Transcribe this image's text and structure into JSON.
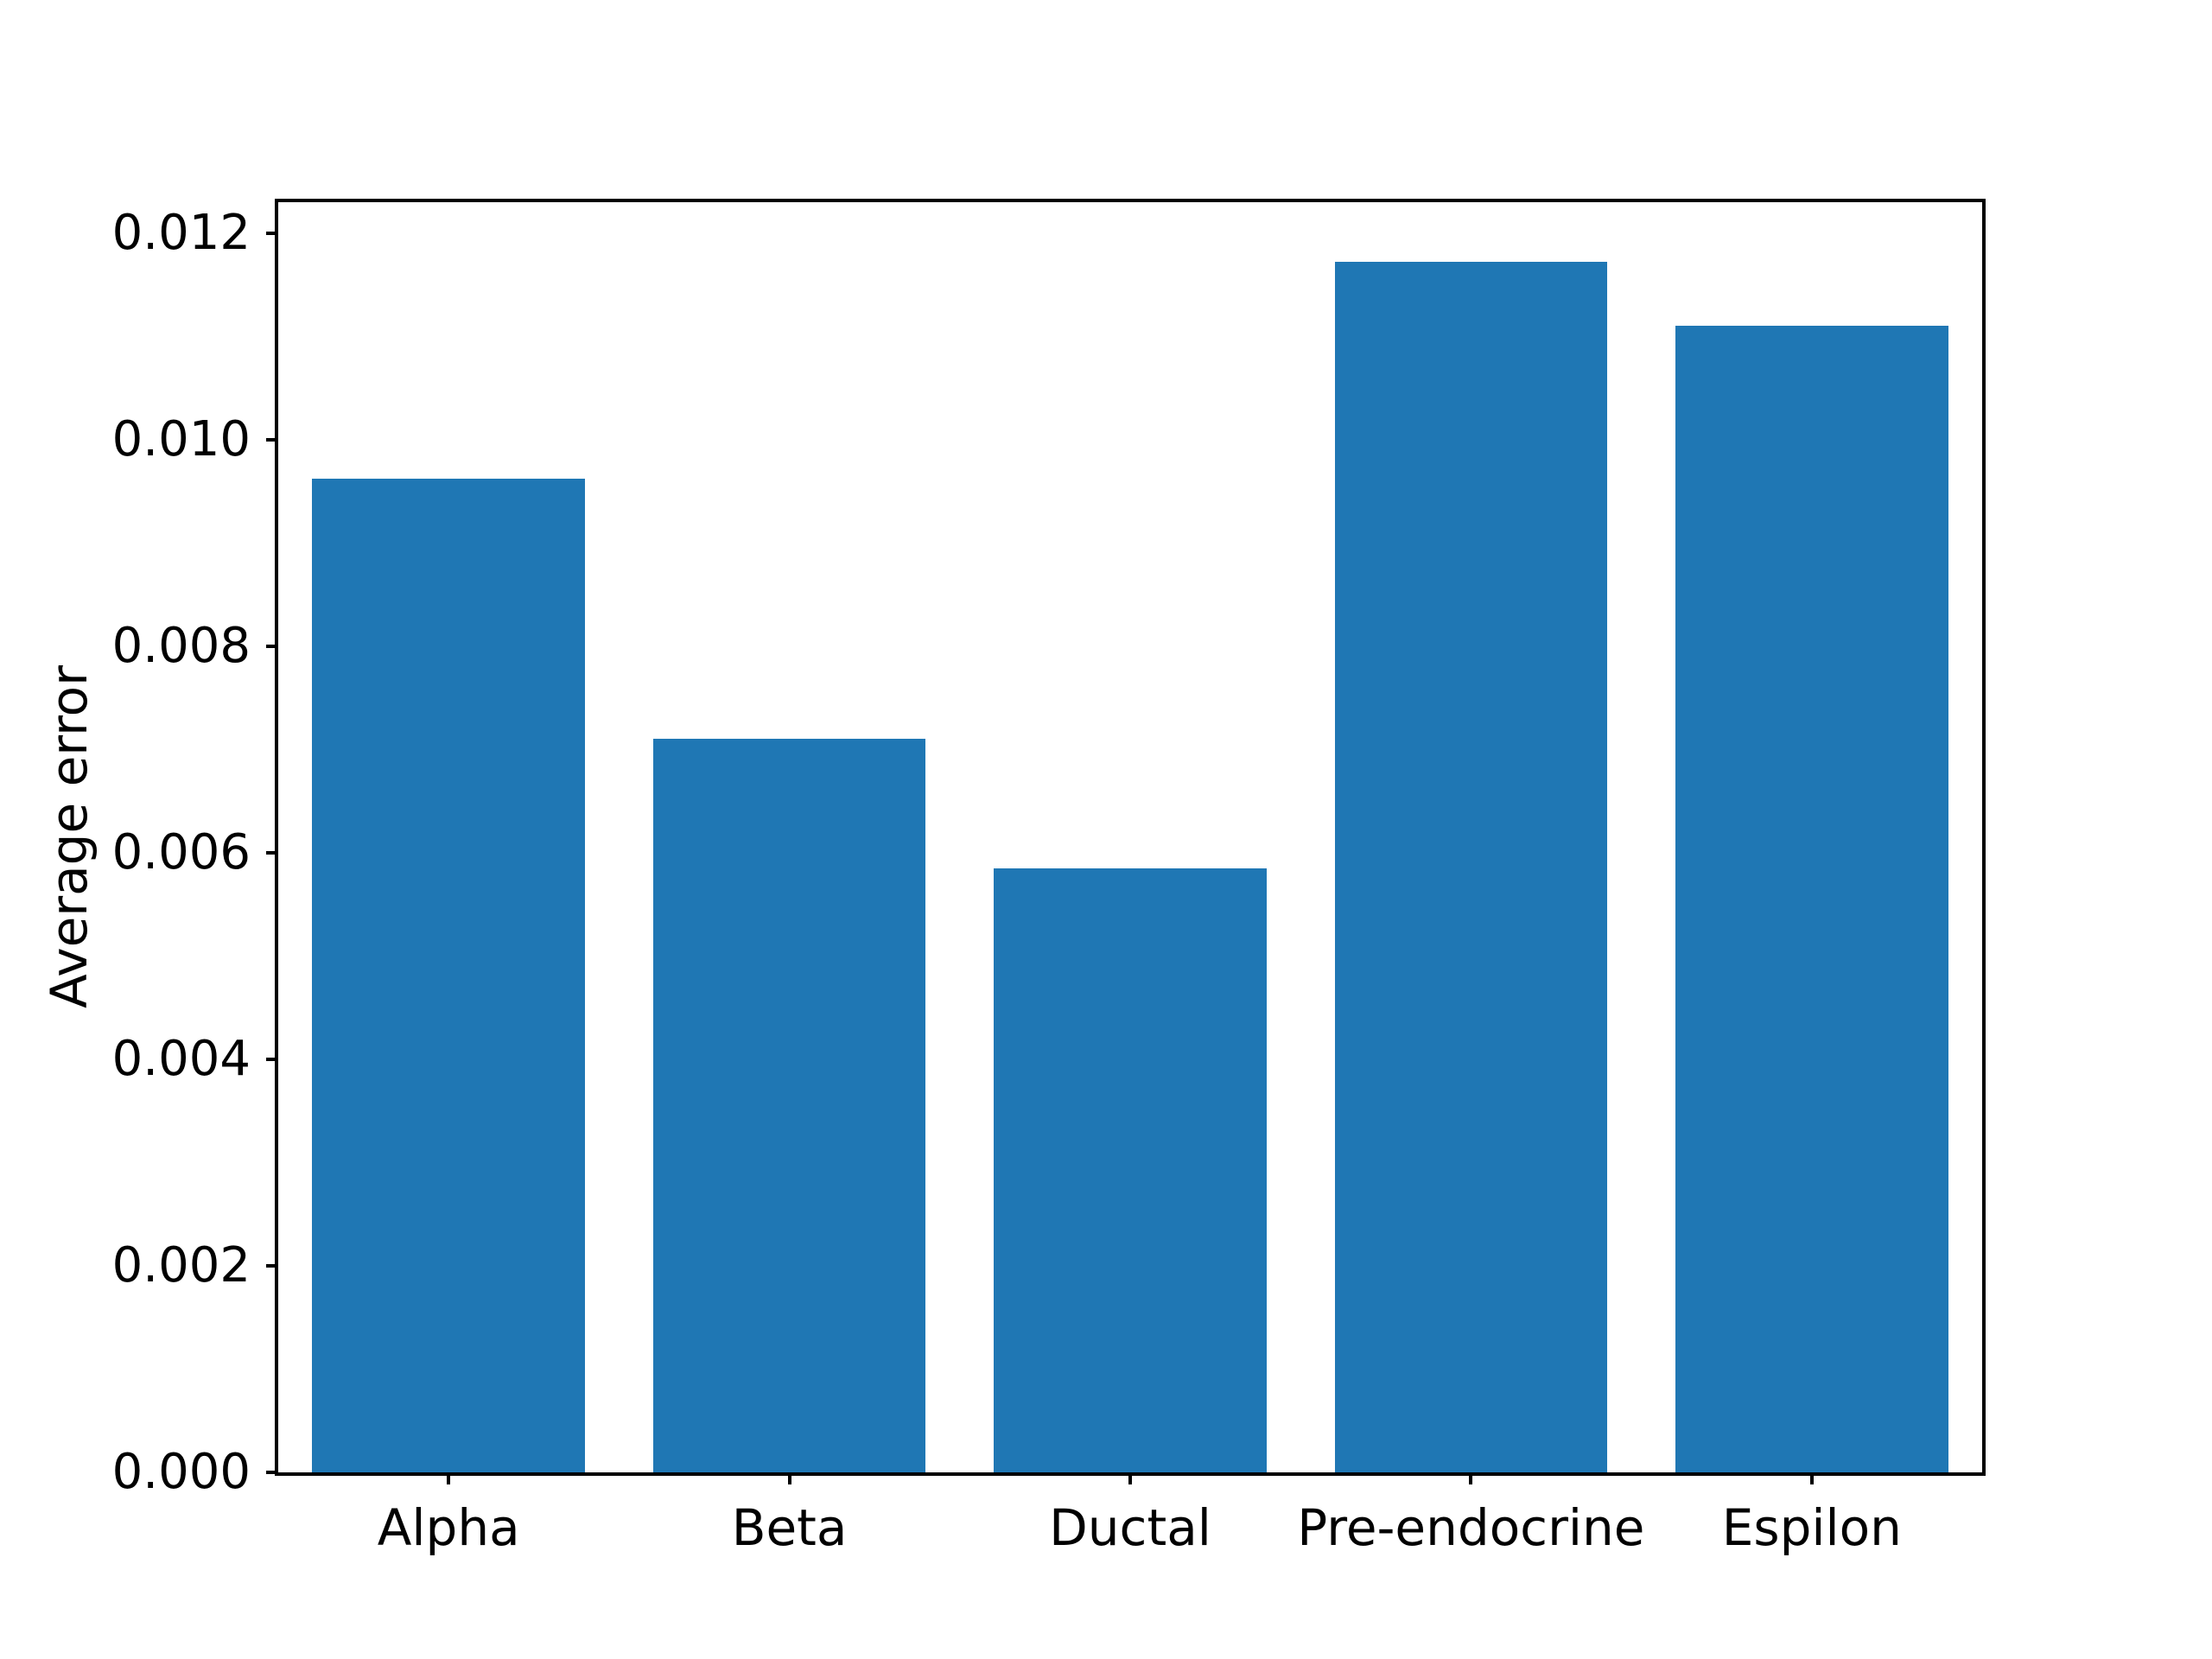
{
  "chart_data": {
    "type": "bar",
    "title": "",
    "xlabel": "",
    "ylabel": "Average error",
    "categories": [
      "Alpha",
      "Beta",
      "Ductal",
      "Pre-endocrine",
      "Espilon"
    ],
    "values": [
      0.00962,
      0.0071,
      0.00585,
      0.01172,
      0.0111
    ],
    "ylim": [
      0,
      0.0123
    ],
    "yticks": [
      0.0,
      0.002,
      0.004,
      0.006,
      0.008,
      0.01,
      0.012
    ],
    "ytick_labels": [
      "0.000",
      "0.002",
      "0.004",
      "0.006",
      "0.008",
      "0.010",
      "0.012"
    ],
    "bar_color": "#1f77b4",
    "axis_color": "#000000",
    "background_color": "#ffffff",
    "grid": false,
    "legend": null,
    "bar_width_fraction": 0.8
  }
}
